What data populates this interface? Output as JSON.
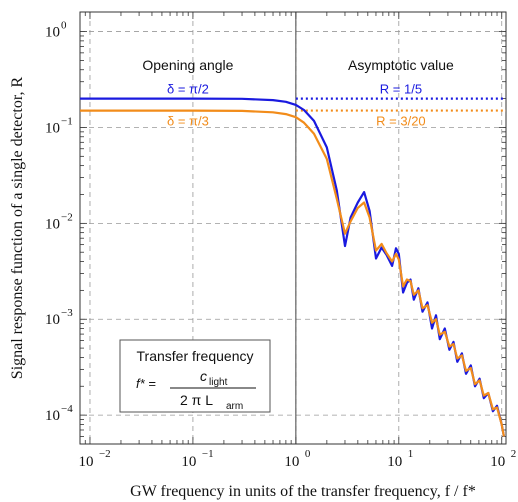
{
  "chart_data": {
    "type": "line",
    "xlabel": "GW frequency in units of the transfer frequency, f / f*",
    "ylabel": "Signal response function of a single detector, R",
    "x_scale": "log",
    "y_scale": "log",
    "xlim": [
      0.008,
      110
    ],
    "ylim": [
      5e-05,
      1.6
    ],
    "x_ticks": [
      {
        "value": 0.01,
        "label": "10"
      },
      {
        "value": 0.1,
        "label": "10"
      },
      {
        "value": 1,
        "label": "10"
      },
      {
        "value": 10,
        "label": "10"
      },
      {
        "value": 100,
        "label": "10"
      }
    ],
    "x_tick_exponents": [
      "−2",
      "−1",
      "0",
      "1",
      "2"
    ],
    "y_ticks": [
      {
        "value": 0.0001,
        "label": "10"
      },
      {
        "value": 0.001,
        "label": "10"
      },
      {
        "value": 0.01,
        "label": "10"
      },
      {
        "value": 0.1,
        "label": "10"
      },
      {
        "value": 1,
        "label": "10"
      }
    ],
    "y_tick_exponents": [
      "−4",
      "−3",
      "−2",
      "−1",
      "0"
    ],
    "grid": true,
    "series": [
      {
        "name": "δ = π/2",
        "color": "#1a1adf",
        "asymptote": 0.2,
        "asymptote_label": "R = 1/5",
        "points": [
          [
            0.008,
            0.2
          ],
          [
            0.1,
            0.2
          ],
          [
            0.3,
            0.199
          ],
          [
            0.6,
            0.193
          ],
          [
            0.8,
            0.185
          ],
          [
            1.0,
            0.172
          ],
          [
            1.2,
            0.152
          ],
          [
            1.5,
            0.117
          ],
          [
            2.0,
            0.062
          ],
          [
            2.5,
            0.022
          ],
          [
            3.0,
            0.0058
          ],
          [
            3.4,
            0.0115
          ],
          [
            4.0,
            0.0165
          ],
          [
            4.6,
            0.0212
          ],
          [
            5.2,
            0.0135
          ],
          [
            6.0,
            0.0043
          ],
          [
            6.8,
            0.0056
          ],
          [
            7.6,
            0.0047
          ],
          [
            8.6,
            0.0036
          ],
          [
            9.4,
            0.0055
          ],
          [
            10.0,
            0.0048
          ],
          [
            11.0,
            0.0019
          ],
          [
            12.0,
            0.0024
          ],
          [
            13.0,
            0.0026
          ],
          [
            14.0,
            0.0016
          ],
          [
            15.5,
            0.0021
          ],
          [
            17.0,
            0.0012
          ],
          [
            19.0,
            0.0015
          ],
          [
            21.0,
            0.0008
          ],
          [
            23.0,
            0.0011
          ],
          [
            25.0,
            0.00062
          ],
          [
            28.0,
            0.0008
          ],
          [
            31.0,
            0.00048
          ],
          [
            34.0,
            0.00058
          ],
          [
            37.0,
            0.00036
          ],
          [
            41.0,
            0.00044
          ],
          [
            45.0,
            0.00027
          ],
          [
            50.0,
            0.00033
          ],
          [
            55.0,
            0.0002
          ],
          [
            61.0,
            0.00024
          ],
          [
            67.0,
            0.00015
          ],
          [
            74.0,
            0.00017
          ],
          [
            82.0,
            0.00011
          ],
          [
            90.0,
            0.000125
          ],
          [
            100.0,
            8e-05
          ],
          [
            105.0,
            6e-05
          ]
        ]
      },
      {
        "name": "δ = π/3",
        "color": "#f28c1a",
        "asymptote": 0.15,
        "asymptote_label": "R = 3/20",
        "points": [
          [
            0.008,
            0.15
          ],
          [
            0.1,
            0.15
          ],
          [
            0.3,
            0.149
          ],
          [
            0.6,
            0.144
          ],
          [
            0.8,
            0.138
          ],
          [
            1.0,
            0.128
          ],
          [
            1.2,
            0.112
          ],
          [
            1.5,
            0.086
          ],
          [
            2.0,
            0.047
          ],
          [
            2.5,
            0.018
          ],
          [
            3.0,
            0.0078
          ],
          [
            3.4,
            0.0105
          ],
          [
            4.0,
            0.0145
          ],
          [
            4.6,
            0.0165
          ],
          [
            5.2,
            0.0115
          ],
          [
            6.0,
            0.0052
          ],
          [
            6.8,
            0.0061
          ],
          [
            7.6,
            0.0049
          ],
          [
            8.6,
            0.004
          ],
          [
            9.4,
            0.0048
          ],
          [
            10.0,
            0.0042
          ],
          [
            11.0,
            0.0022
          ],
          [
            12.0,
            0.0026
          ],
          [
            13.0,
            0.0025
          ],
          [
            14.0,
            0.0018
          ],
          [
            15.5,
            0.002
          ],
          [
            17.0,
            0.0013
          ],
          [
            19.0,
            0.0014
          ],
          [
            21.0,
            0.00092
          ],
          [
            23.0,
            0.001
          ],
          [
            25.0,
            0.00069
          ],
          [
            28.0,
            0.00074
          ],
          [
            31.0,
            0.00052
          ],
          [
            34.0,
            0.00055
          ],
          [
            37.0,
            0.00039
          ],
          [
            41.0,
            0.00042
          ],
          [
            45.0,
            0.00029
          ],
          [
            50.0,
            0.00031
          ],
          [
            55.0,
            0.00021
          ],
          [
            61.0,
            0.00023
          ],
          [
            67.0,
            0.00016
          ],
          [
            74.0,
            0.00017
          ],
          [
            82.0,
            0.000115
          ],
          [
            90.0,
            0.00012
          ],
          [
            100.0,
            8e-05
          ],
          [
            105.0,
            6e-05
          ]
        ]
      }
    ],
    "annotations": {
      "opening_angle_header": "Opening angle",
      "asymptotic_header": "Asymptotic value",
      "box_title": "Transfer frequency",
      "box_formula_lhs": "f* =",
      "box_formula_num": "c",
      "box_formula_num_sub": "light",
      "box_formula_den": "2 π L",
      "box_formula_den_sub": "arm"
    },
    "vertical_line_at": 1.0
  }
}
